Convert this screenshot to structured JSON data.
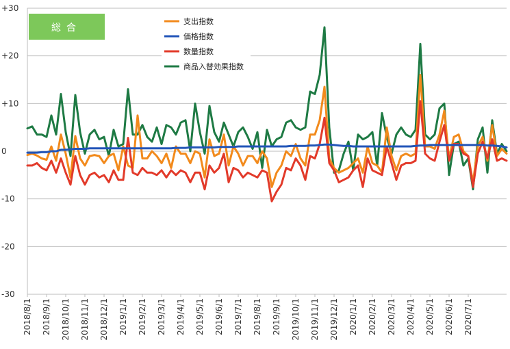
{
  "chart_data": {
    "type": "line",
    "title": "",
    "badge": {
      "text": "総合",
      "color": "#7dc85a"
    },
    "xlabel": "",
    "ylabel": "",
    "ylim": [
      -30,
      30
    ],
    "y_ticks": [
      30,
      20,
      10,
      0,
      -10,
      -20,
      -30
    ],
    "y_tick_labels": [
      "+30",
      "+20",
      "+10",
      "0",
      "-10",
      "-20",
      "-30"
    ],
    "grid": true,
    "legend_position": "top-center",
    "x_tick_labels": [
      "2018/8/1",
      "2018/9/1",
      "2018/10/1",
      "2018/11/1",
      "2018/12/1",
      "2019/1/1",
      "2019/2/1",
      "2019/3/1",
      "2019/4/1",
      "2019/5/1",
      "2019/6/1",
      "2019/7/1",
      "2019/8/1",
      "2019/9/1",
      "2019/10/1",
      "2019/11/1",
      "2019/12/1",
      "2020/1/1",
      "2020/2/1",
      "2020/3/1",
      "2020/4/1",
      "2020/5/1",
      "2020/6/1",
      "2020/7/1"
    ],
    "points_per_month": 4,
    "series": [
      {
        "name": "支出指数",
        "color": "#f28a1c",
        "values": [
          -0.8,
          -0.5,
          -0.9,
          -1.5,
          -1.8,
          1.0,
          -2.0,
          3.5,
          -0.5,
          -5.5,
          3.2,
          -1.5,
          -3.0,
          -1.0,
          -0.8,
          -1.0,
          -2.5,
          -1.0,
          -0.5,
          -4.0,
          1.0,
          -3.0,
          -3.5,
          7.5,
          -1.5,
          -1.5,
          0.0,
          -1.0,
          -2.5,
          -0.5,
          -3.5,
          1.0,
          -0.5,
          -0.5,
          -2.5,
          0.0,
          -0.5,
          -5.5,
          2.5,
          -1.0,
          -0.5,
          3.5,
          -3.0,
          1.0,
          -0.5,
          -3.0,
          -1.0,
          -1.0,
          -2.5,
          0.0,
          -1.5,
          -7.5,
          -4.5,
          -3.0,
          0.0,
          -1.0,
          1.5,
          -1.5,
          -3.0,
          3.5,
          3.5,
          6.5,
          13.5,
          -1.5,
          -3.5,
          -4.5,
          -4.0,
          -3.5,
          -2.5,
          -1.5,
          -4.5,
          1.0,
          -2.5,
          -3.0,
          -4.5,
          5.0,
          -1.0,
          -4.0,
          -1.0,
          -0.5,
          -1.0,
          -0.5,
          16.0,
          1.0,
          1.0,
          0.5,
          3.5,
          8.5,
          -1.5,
          3.0,
          3.5,
          0.0,
          -1.0,
          -6.5,
          1.0,
          3.0,
          -2.0,
          5.5,
          -1.0,
          0.5,
          -0.5
        ]
      },
      {
        "name": "価格指数",
        "color": "#2255b8",
        "values": [
          -0.3,
          -0.3,
          -0.3,
          -0.2,
          -0.2,
          0.0,
          0.0,
          0.3,
          0.3,
          0.4,
          0.5,
          0.5,
          0.5,
          0.6,
          0.6,
          0.6,
          0.6,
          0.6,
          0.6,
          0.6,
          0.6,
          0.6,
          0.6,
          0.6,
          0.6,
          0.6,
          0.6,
          0.6,
          0.6,
          0.6,
          0.6,
          0.7,
          0.7,
          0.7,
          0.8,
          0.8,
          0.8,
          0.8,
          0.8,
          0.8,
          0.9,
          0.9,
          0.9,
          0.9,
          1.0,
          1.0,
          1.0,
          1.0,
          1.0,
          1.0,
          1.0,
          1.0,
          1.0,
          1.0,
          1.0,
          1.1,
          1.1,
          1.1,
          1.1,
          1.2,
          1.2,
          1.3,
          1.4,
          1.4,
          1.3,
          1.2,
          1.1,
          1.1,
          1.0,
          1.0,
          1.0,
          1.0,
          1.0,
          1.0,
          1.0,
          1.0,
          1.0,
          1.0,
          1.0,
          1.0,
          1.0,
          1.1,
          1.2,
          1.2,
          1.3,
          1.3,
          1.3,
          1.3,
          1.3,
          1.3,
          1.3,
          1.3,
          1.3,
          1.3,
          1.3,
          1.3,
          1.2,
          1.2,
          1.1,
          1.0,
          0.8
        ]
      },
      {
        "name": "数量指数",
        "color": "#e23a2a",
        "values": [
          -3.0,
          -3.0,
          -2.5,
          -3.5,
          -4.0,
          -2.0,
          -4.5,
          -1.5,
          -4.5,
          -7.0,
          -1.0,
          -5.0,
          -7.0,
          -5.0,
          -4.5,
          -5.5,
          -5.0,
          -6.5,
          -4.0,
          -6.0,
          -6.0,
          2.8,
          -4.5,
          -5.0,
          -3.5,
          -4.5,
          -4.5,
          -5.0,
          -4.0,
          -5.5,
          -4.0,
          -5.0,
          -4.0,
          -4.5,
          -6.5,
          -4.5,
          -4.5,
          -8.0,
          -3.0,
          -4.5,
          -3.5,
          -0.5,
          -6.5,
          -3.5,
          -4.0,
          -5.5,
          -4.5,
          -5.0,
          -5.5,
          -4.0,
          -4.5,
          -10.5,
          -8.5,
          -7.0,
          -3.5,
          -4.0,
          -1.5,
          -3.0,
          -6.0,
          -1.0,
          -1.5,
          1.5,
          7.0,
          -2.5,
          -4.0,
          -6.5,
          -6.0,
          -5.5,
          -4.0,
          -3.0,
          -7.5,
          -1.5,
          -4.0,
          -4.5,
          -5.0,
          1.0,
          -2.5,
          -6.0,
          -3.0,
          -2.5,
          -2.5,
          -2.0,
          10.5,
          -0.5,
          -1.5,
          -2.0,
          2.0,
          5.5,
          -2.0,
          1.5,
          1.5,
          -0.5,
          -1.0,
          -7.5,
          -0.5,
          2.0,
          -1.5,
          2.5,
          -2.0,
          -1.5,
          -2.0
        ]
      },
      {
        "name": "商品入替効果指数",
        "color": "#1e7a44",
        "values": [
          4.8,
          5.2,
          3.5,
          3.5,
          3.0,
          7.5,
          3.5,
          12.0,
          4.0,
          -1.0,
          11.8,
          4.0,
          -0.5,
          3.5,
          4.5,
          2.5,
          3.0,
          -1.0,
          4.5,
          1.0,
          1.5,
          13.0,
          3.5,
          3.5,
          5.5,
          3.0,
          2.0,
          5.0,
          1.5,
          5.5,
          5.0,
          3.5,
          6.0,
          6.5,
          0.0,
          10.0,
          4.0,
          -0.5,
          9.5,
          4.0,
          2.0,
          6.0,
          3.5,
          1.0,
          4.0,
          5.0,
          3.0,
          0.5,
          4.0,
          -3.5,
          4.5,
          1.0,
          2.5,
          3.0,
          6.0,
          6.5,
          5.0,
          4.5,
          5.0,
          12.5,
          12.0,
          16.0,
          26.0,
          5.0,
          -4.5,
          -4.0,
          -0.5,
          2.0,
          -4.0,
          3.5,
          2.5,
          3.0,
          4.0,
          -3.0,
          8.0,
          3.0,
          -0.5,
          3.5,
          5.0,
          3.5,
          3.0,
          4.5,
          22.5,
          3.5,
          2.5,
          3.5,
          9.0,
          10.0,
          -5.0,
          1.5,
          2.0,
          -3.0,
          -1.5,
          -8.0,
          2.5,
          5.0,
          -4.5,
          6.5,
          -0.5,
          1.5,
          0.0
        ]
      }
    ]
  }
}
